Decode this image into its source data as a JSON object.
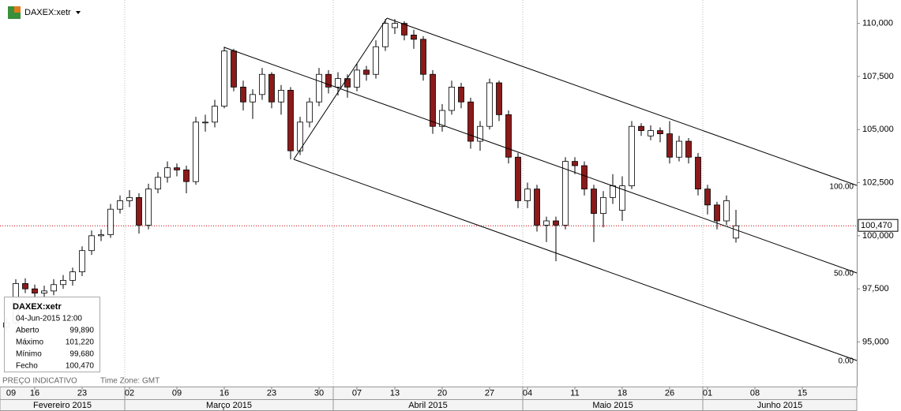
{
  "chart_data": {
    "type": "candlestick",
    "symbol": "DAXEX:xetr",
    "footer_left": "PREÇO INDICATIVO",
    "footer_timezone": "Time Zone: GMT",
    "categories": [
      "2015-02-09",
      "2015-02-10",
      "2015-02-11",
      "2015-02-12",
      "2015-02-13",
      "2015-02-16",
      "2015-02-17",
      "2015-02-18",
      "2015-02-19",
      "2015-02-20",
      "2015-02-23",
      "2015-02-24",
      "2015-02-25",
      "2015-02-26",
      "2015-02-27",
      "2015-03-02",
      "2015-03-03",
      "2015-03-04",
      "2015-03-05",
      "2015-03-06",
      "2015-03-09",
      "2015-03-10",
      "2015-03-11",
      "2015-03-12",
      "2015-03-13",
      "2015-03-16",
      "2015-03-17",
      "2015-03-18",
      "2015-03-19",
      "2015-03-20",
      "2015-03-23",
      "2015-03-24",
      "2015-03-25",
      "2015-03-26",
      "2015-03-27",
      "2015-03-30",
      "2015-03-31",
      "2015-04-01",
      "2015-04-02",
      "2015-04-07",
      "2015-04-08",
      "2015-04-09",
      "2015-04-10",
      "2015-04-13",
      "2015-04-14",
      "2015-04-15",
      "2015-04-16",
      "2015-04-17",
      "2015-04-20",
      "2015-04-21",
      "2015-04-22",
      "2015-04-23",
      "2015-04-24",
      "2015-04-27",
      "2015-04-28",
      "2015-04-29",
      "2015-04-30",
      "2015-05-04",
      "2015-05-05",
      "2015-05-06",
      "2015-05-07",
      "2015-05-08",
      "2015-05-11",
      "2015-05-12",
      "2015-05-13",
      "2015-05-14",
      "2015-05-15",
      "2015-05-18",
      "2015-05-19",
      "2015-05-20",
      "2015-05-21",
      "2015-05-22",
      "2015-05-26",
      "2015-05-27",
      "2015-05-28",
      "2015-05-29",
      "2015-06-01",
      "2015-06-02",
      "2015-06-03",
      "2015-06-04",
      "2015-06-05",
      "2015-06-08",
      "2015-06-09",
      "2015-06-10",
      "2015-06-11",
      "2015-06-12",
      "2015-06-15",
      "2015-06-16",
      "2015-06-17",
      "2015-06-18",
      "2015-06-19"
    ],
    "series": {
      "up_color": "#ffffff",
      "down_color": "#8b1a1a",
      "outline_color": "#000000",
      "open": [
        null,
        null,
        95700,
        95900,
        97750,
        97500,
        97300,
        97400,
        97700,
        97900,
        98300,
        99300,
        100000,
        100050,
        101250,
        101650,
        101800,
        100500,
        102200,
        102750,
        103200,
        103100,
        102550,
        105350,
        105350,
        106100,
        108700,
        107000,
        106300,
        106650,
        107600,
        106300,
        106850,
        104000,
        105350,
        106300,
        107600,
        107000,
        107400,
        107000,
        107800,
        107600,
        108900,
        109800,
        110000,
        109450,
        109250,
        107600,
        105150,
        105900,
        107000,
        106300,
        104450,
        105150,
        107200,
        105700,
        103700,
        101650,
        102200,
        100500,
        100700,
        100500,
        103500,
        103300,
        102200,
        101050,
        101800,
        101200,
        102350,
        105150,
        104700,
        104950,
        104800,
        103700,
        104450,
        103700,
        102200,
        101450,
        100700,
        99890,
        null,
        null,
        null,
        null,
        null,
        null,
        null,
        null,
        null,
        null,
        null
      ],
      "high": [
        null,
        null,
        96150,
        97950,
        98000,
        97700,
        97650,
        97950,
        98150,
        98500,
        99500,
        100250,
        100300,
        101500,
        101900,
        102150,
        102000,
        102450,
        103000,
        103500,
        103400,
        103300,
        105600,
        105700,
        106400,
        108900,
        108800,
        107300,
        106900,
        107900,
        107700,
        107100,
        107000,
        105600,
        106500,
        107900,
        107800,
        107700,
        107600,
        108100,
        108000,
        109200,
        110200,
        110200,
        110100,
        109700,
        109400,
        107800,
        106200,
        107300,
        107200,
        106500,
        105400,
        107400,
        107300,
        105900,
        103900,
        102500,
        102400,
        100900,
        100900,
        103700,
        103700,
        103500,
        102400,
        102100,
        102900,
        102800,
        105400,
        105300,
        105200,
        105100,
        105400,
        104700,
        104600,
        103900,
        102400,
        101600,
        101900,
        101220,
        null,
        null,
        null,
        null,
        null,
        null,
        null,
        null,
        null,
        null,
        null
      ],
      "low": [
        null,
        null,
        95500,
        95800,
        97300,
        97050,
        97100,
        97200,
        97500,
        97650,
        98100,
        99100,
        99750,
        99900,
        101050,
        101350,
        100100,
        100300,
        102000,
        102500,
        102800,
        102000,
        102400,
        104900,
        105100,
        106000,
        106800,
        105900,
        105500,
        106400,
        106000,
        105700,
        103600,
        103800,
        105100,
        106100,
        106700,
        106600,
        106500,
        106800,
        107300,
        107400,
        108700,
        109500,
        109200,
        108800,
        107300,
        104800,
        104900,
        105700,
        106000,
        104100,
        104000,
        105000,
        105400,
        103400,
        101300,
        101300,
        100200,
        99700,
        98800,
        100300,
        102900,
        101900,
        99700,
        100400,
        101500,
        100700,
        102200,
        104700,
        104500,
        104400,
        103400,
        103500,
        103400,
        101900,
        101000,
        100300,
        100500,
        99680,
        null,
        null,
        null,
        null,
        null,
        null,
        null,
        null,
        null,
        null,
        null
      ],
      "close": [
        null,
        null,
        95900,
        97750,
        97500,
        97300,
        97400,
        97700,
        97900,
        98300,
        99300,
        100000,
        100050,
        101250,
        101650,
        101800,
        100500,
        102200,
        102750,
        103200,
        103100,
        102550,
        105350,
        105350,
        106100,
        108700,
        107000,
        106300,
        106650,
        107600,
        106300,
        106850,
        104000,
        105350,
        106300,
        107600,
        107000,
        107400,
        107000,
        107800,
        107600,
        108900,
        110000,
        110000,
        109450,
        109250,
        107600,
        105150,
        105900,
        107000,
        106300,
        104450,
        105150,
        107200,
        105700,
        103700,
        101650,
        102200,
        100500,
        100700,
        100500,
        103500,
        103300,
        102200,
        101050,
        101800,
        102350,
        102350,
        105150,
        104950,
        104950,
        104800,
        103700,
        104450,
        103700,
        102200,
        101450,
        100700,
        101650,
        100470,
        null,
        null,
        null,
        null,
        null,
        null,
        null,
        null,
        null,
        null,
        null
      ]
    },
    "ylim": [
      92900,
      111100
    ],
    "yticks": [
      {
        "value": 110000,
        "label": "110,000"
      },
      {
        "value": 107500,
        "label": "107,500"
      },
      {
        "value": 105000,
        "label": "105,000"
      },
      {
        "value": 102500,
        "label": "102,500"
      },
      {
        "value": 100000,
        "label": "100,000"
      },
      {
        "value": 97500,
        "label": "97,500"
      },
      {
        "value": 95000,
        "label": "95,000"
      }
    ],
    "xticks": [
      {
        "value": "2015-02-09",
        "label": "09"
      },
      {
        "value": "2015-02-16",
        "label": "16"
      },
      {
        "value": "2015-02-23",
        "label": "23"
      },
      {
        "value": "2015-03-02",
        "label": "02"
      },
      {
        "value": "2015-03-09",
        "label": "09"
      },
      {
        "value": "2015-03-16",
        "label": "16"
      },
      {
        "value": "2015-03-23",
        "label": "23"
      },
      {
        "value": "2015-03-30",
        "label": "30"
      },
      {
        "value": "2015-04-07",
        "label": "07"
      },
      {
        "value": "2015-04-13",
        "label": "13"
      },
      {
        "value": "2015-04-20",
        "label": "20"
      },
      {
        "value": "2015-04-27",
        "label": "27"
      },
      {
        "value": "2015-05-04",
        "label": "04"
      },
      {
        "value": "2015-05-11",
        "label": "11"
      },
      {
        "value": "2015-05-18",
        "label": "18"
      },
      {
        "value": "2015-05-26",
        "label": "26"
      },
      {
        "value": "2015-06-01",
        "label": "01"
      },
      {
        "value": "2015-06-08",
        "label": "08"
      },
      {
        "value": "2015-06-15",
        "label": "15"
      }
    ],
    "months": [
      {
        "value": "2015-02",
        "label": "Fevereiro 2015"
      },
      {
        "value": "2015-03",
        "label": "Março 2015"
      },
      {
        "value": "2015-04",
        "label": "Abril 2015"
      },
      {
        "value": "2015-05",
        "label": "Maio 2015"
      },
      {
        "value": "2015-06",
        "label": "Junho 2015"
      }
    ],
    "last_price": {
      "value": 100470,
      "label": "100,470",
      "color": "#c00000"
    },
    "pitchfork_levels": [
      "100.00",
      "50.00",
      "0.00"
    ],
    "info_box": {
      "title": "DAXEX:xetr",
      "datetime": "04-Jun-2015 12:00",
      "rows": [
        [
          "Aberto",
          "99,890"
        ],
        [
          "Máximo",
          "101,220"
        ],
        [
          "Mínimo",
          "99,680"
        ],
        [
          "Fecho",
          "100,470"
        ]
      ]
    }
  }
}
